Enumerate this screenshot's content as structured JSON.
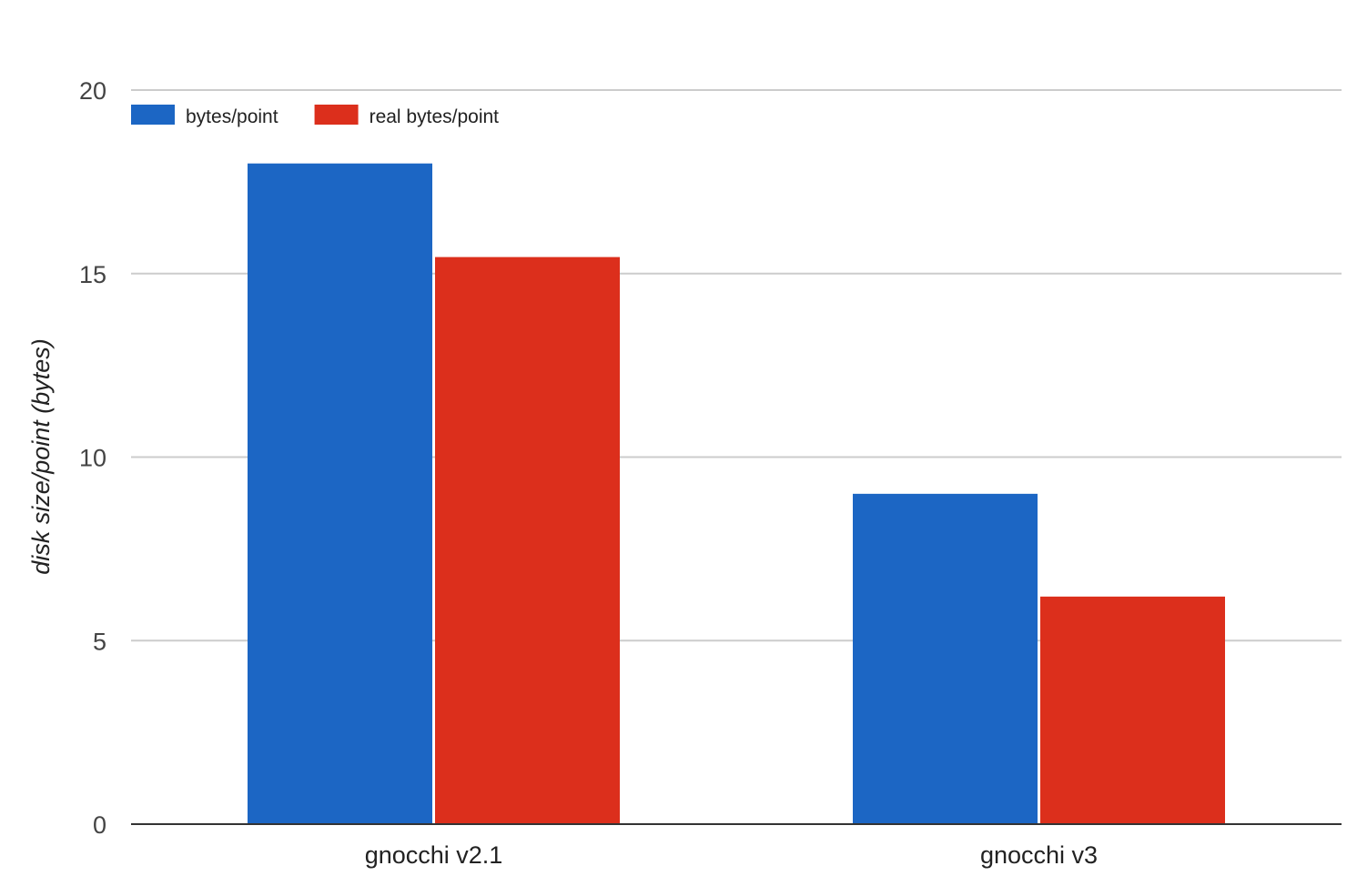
{
  "chart_data": {
    "type": "bar",
    "title": "",
    "xlabel": "",
    "ylabel": "disk size/point (bytes)",
    "categories": [
      "gnocchi v2.1",
      "gnocchi v3"
    ],
    "series": [
      {
        "name": "bytes/point",
        "color": "#1c66c4",
        "values": [
          18,
          9
        ]
      },
      {
        "name": "real bytes/point",
        "color": "#dc2f1c",
        "values": [
          15.45,
          6.2
        ]
      }
    ],
    "ylim": [
      0,
      20
    ],
    "yticks": [
      0,
      5,
      10,
      15,
      20
    ],
    "grid": true,
    "legend": "top-left"
  }
}
